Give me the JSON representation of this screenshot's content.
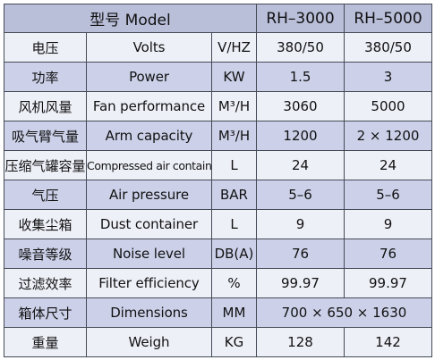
{
  "header": {
    "model_label": "型号  Model",
    "col1": "RH–3000",
    "col2": "RH–5000"
  },
  "rows": [
    {
      "cn": "电压",
      "en": "Volts",
      "unit": "V/HZ",
      "v1": "380/50",
      "v2": "380/50"
    },
    {
      "cn": "功率",
      "en": "Power",
      "unit": "KW",
      "v1": "1.5",
      "v2": "3"
    },
    {
      "cn": "风机风量",
      "en": "Fan performance",
      "unit": "M³/H",
      "v1": "3060",
      "v2": "5000"
    },
    {
      "cn": "吸气臂气量",
      "en": "Arm capacity",
      "unit": "M³/H",
      "v1": "1200",
      "v2": "2 × 1200"
    },
    {
      "cn": "压缩气罐容量",
      "en": "Compressed air container",
      "unit": "L",
      "v1": "24",
      "v2": "24"
    },
    {
      "cn": "气压",
      "en": "Air pressure",
      "unit": "BAR",
      "v1": "5–6",
      "v2": "5–6"
    },
    {
      "cn": "收集尘箱",
      "en": "Dust container",
      "unit": "L",
      "v1": "9",
      "v2": "9"
    },
    {
      "cn": "噪音等级",
      "en": "Noise level",
      "unit": "DB(A)",
      "v1": "76",
      "v2": "76"
    },
    {
      "cn": "过滤效率",
      "en": "Filter efficiency",
      "unit": "%",
      "v1": "99.97",
      "v2": "99.97"
    },
    {
      "cn": "箱体尺寸",
      "en": "Dimensions",
      "unit": "MM",
      "merged": "700 × 650 × 1630"
    },
    {
      "cn": "重量",
      "en": "Weigh",
      "unit": "KG",
      "v1": "128",
      "v2": "142"
    }
  ]
}
